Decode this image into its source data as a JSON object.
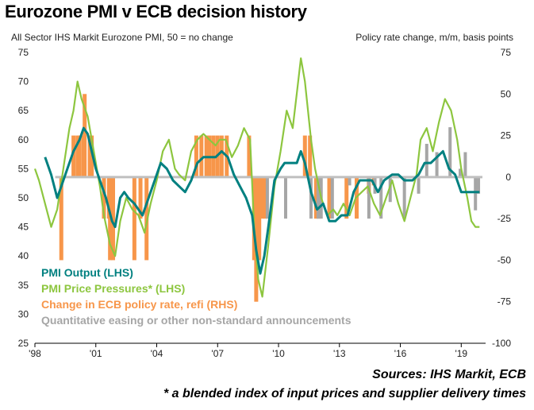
{
  "title": "Eurozone PMI v ECB decision history",
  "left_axis_label": "All Sector IHS Markit Eurozone PMI, 50 = no change",
  "right_axis_label": "Policy rate change, m/m, basis points",
  "sources": "Sources: IHS Markit, ECB",
  "footnote": "* a blended index of input prices and supplier delivery times",
  "colors": {
    "pmi_output": "#008080",
    "pmi_price": "#8DC63F",
    "refi": "#F7964A",
    "qe": "#A6A6A6"
  },
  "chart_data": {
    "type": "line",
    "ylim_left": [
      25,
      75
    ],
    "ylim_right": [
      -100,
      75
    ],
    "xlim": [
      1998,
      2020.2
    ],
    "left_ticks": [
      "75",
      "70",
      "65",
      "60",
      "55",
      "50",
      "45",
      "40",
      "35",
      "30",
      "25"
    ],
    "right_ticks": [
      "75",
      "50",
      "25",
      "0",
      "-25",
      "-50",
      "-75",
      "-100"
    ],
    "x_ticks": [
      {
        "year": 1998,
        "label": "'98"
      },
      {
        "year": 2001,
        "label": "'01"
      },
      {
        "year": 2004,
        "label": "'04"
      },
      {
        "year": 2007,
        "label": "'07"
      },
      {
        "year": 2010,
        "label": "'10"
      },
      {
        "year": 2013,
        "label": "'13"
      },
      {
        "year": 2016,
        "label": "'16"
      },
      {
        "year": 2019,
        "label": "'19"
      }
    ],
    "legend": [
      {
        "label": "PMI  Output (LHS)",
        "color": "#008080"
      },
      {
        "label": "PMI Price Pressures* (LHS)",
        "color": "#8DC63F"
      },
      {
        "label": "Change in ECB policy rate, refi (RHS)",
        "color": "#F7964A"
      },
      {
        "label": "Quantitative easing or other non-standard announcements",
        "color": "#A6A6A6"
      }
    ],
    "series": [
      {
        "name": "PMI  Output (LHS)",
        "axis": "left",
        "points": [
          [
            1998.5,
            57
          ],
          [
            1998.8,
            54
          ],
          [
            1999.1,
            50
          ],
          [
            1999.3,
            52
          ],
          [
            1999.6,
            55
          ],
          [
            1999.9,
            58
          ],
          [
            2000.2,
            60
          ],
          [
            2000.4,
            62
          ],
          [
            2000.6,
            61
          ],
          [
            2000.8,
            58
          ],
          [
            2001.0,
            55
          ],
          [
            2001.2,
            53
          ],
          [
            2001.5,
            50
          ],
          [
            2001.8,
            46
          ],
          [
            2001.95,
            45
          ],
          [
            2002.2,
            50
          ],
          [
            2002.4,
            51
          ],
          [
            2002.6,
            50
          ],
          [
            2002.9,
            49
          ],
          [
            2003.1,
            48
          ],
          [
            2003.3,
            47
          ],
          [
            2003.6,
            50
          ],
          [
            2003.9,
            53
          ],
          [
            2004.2,
            56
          ],
          [
            2004.5,
            55
          ],
          [
            2004.8,
            53
          ],
          [
            2005.1,
            52
          ],
          [
            2005.4,
            51
          ],
          [
            2005.7,
            53
          ],
          [
            2006.0,
            56
          ],
          [
            2006.3,
            57
          ],
          [
            2006.6,
            57
          ],
          [
            2006.9,
            57
          ],
          [
            2007.2,
            58
          ],
          [
            2007.5,
            57
          ],
          [
            2007.8,
            54
          ],
          [
            2008.1,
            52
          ],
          [
            2008.4,
            50
          ],
          [
            2008.7,
            47
          ],
          [
            2008.9,
            41
          ],
          [
            2009.1,
            37
          ],
          [
            2009.3,
            40
          ],
          [
            2009.5,
            45
          ],
          [
            2009.8,
            53
          ],
          [
            2010.1,
            55
          ],
          [
            2010.3,
            56
          ],
          [
            2010.6,
            56
          ],
          [
            2010.9,
            56
          ],
          [
            2011.1,
            58
          ],
          [
            2011.3,
            56
          ],
          [
            2011.6,
            51
          ],
          [
            2011.9,
            48
          ],
          [
            2012.2,
            49
          ],
          [
            2012.5,
            46
          ],
          [
            2012.8,
            46
          ],
          [
            2013.1,
            47
          ],
          [
            2013.4,
            47
          ],
          [
            2013.7,
            51
          ],
          [
            2014.0,
            53
          ],
          [
            2014.3,
            53
          ],
          [
            2014.6,
            53
          ],
          [
            2014.9,
            51
          ],
          [
            2015.2,
            53
          ],
          [
            2015.6,
            54
          ],
          [
            2015.9,
            54
          ],
          [
            2016.2,
            53
          ],
          [
            2016.6,
            53
          ],
          [
            2016.9,
            54
          ],
          [
            2017.2,
            56
          ],
          [
            2017.5,
            56
          ],
          [
            2017.8,
            57
          ],
          [
            2018.1,
            58
          ],
          [
            2018.4,
            55
          ],
          [
            2018.7,
            54
          ],
          [
            2019.0,
            51
          ],
          [
            2019.3,
            51
          ],
          [
            2019.6,
            51
          ],
          [
            2019.9,
            51
          ]
        ]
      },
      {
        "name": "PMI Price Pressures* (LHS)",
        "axis": "left",
        "points": [
          [
            1998.0,
            55
          ],
          [
            1998.2,
            53
          ],
          [
            1998.5,
            49
          ],
          [
            1998.8,
            45
          ],
          [
            1999.1,
            48
          ],
          [
            1999.4,
            55
          ],
          [
            1999.7,
            62
          ],
          [
            1999.9,
            65
          ],
          [
            2000.1,
            70
          ],
          [
            2000.3,
            67
          ],
          [
            2000.6,
            64
          ],
          [
            2000.9,
            58
          ],
          [
            2001.2,
            52
          ],
          [
            2001.4,
            47
          ],
          [
            2001.7,
            42
          ],
          [
            2001.95,
            40
          ],
          [
            2002.2,
            46
          ],
          [
            2002.5,
            50
          ],
          [
            2002.8,
            48
          ],
          [
            2003.1,
            47
          ],
          [
            2003.4,
            44
          ],
          [
            2003.7,
            49
          ],
          [
            2004.0,
            53
          ],
          [
            2004.3,
            58
          ],
          [
            2004.6,
            60
          ],
          [
            2004.9,
            55
          ],
          [
            2005.1,
            54
          ],
          [
            2005.4,
            53
          ],
          [
            2005.7,
            58
          ],
          [
            2006.0,
            60
          ],
          [
            2006.3,
            61
          ],
          [
            2006.6,
            60
          ],
          [
            2006.9,
            59
          ],
          [
            2007.1,
            60
          ],
          [
            2007.4,
            60
          ],
          [
            2007.7,
            57
          ],
          [
            2008.0,
            59
          ],
          [
            2008.3,
            62
          ],
          [
            2008.6,
            60
          ],
          [
            2008.8,
            45
          ],
          [
            2009.0,
            36
          ],
          [
            2009.2,
            33
          ],
          [
            2009.5,
            42
          ],
          [
            2009.8,
            52
          ],
          [
            2010.1,
            58
          ],
          [
            2010.4,
            65
          ],
          [
            2010.7,
            62
          ],
          [
            2010.9,
            68
          ],
          [
            2011.1,
            74
          ],
          [
            2011.3,
            70
          ],
          [
            2011.6,
            60
          ],
          [
            2011.8,
            55
          ],
          [
            2012.1,
            50
          ],
          [
            2012.4,
            47
          ],
          [
            2012.7,
            48
          ],
          [
            2012.9,
            47
          ],
          [
            2013.2,
            49
          ],
          [
            2013.5,
            47
          ],
          [
            2013.8,
            50
          ],
          [
            2014.1,
            51
          ],
          [
            2014.4,
            52
          ],
          [
            2014.7,
            49
          ],
          [
            2015.0,
            47
          ],
          [
            2015.3,
            50
          ],
          [
            2015.6,
            53
          ],
          [
            2015.9,
            49
          ],
          [
            2016.2,
            46
          ],
          [
            2016.5,
            50
          ],
          [
            2016.8,
            54
          ],
          [
            2017.0,
            60
          ],
          [
            2017.3,
            62
          ],
          [
            2017.6,
            58
          ],
          [
            2017.9,
            63
          ],
          [
            2018.2,
            67
          ],
          [
            2018.5,
            65
          ],
          [
            2018.8,
            60
          ],
          [
            2019.0,
            55
          ],
          [
            2019.3,
            50
          ],
          [
            2019.5,
            46
          ],
          [
            2019.7,
            45
          ],
          [
            2019.9,
            45
          ]
        ]
      }
    ],
    "refi_changes": [
      {
        "x": 1999.3,
        "value": -50
      },
      {
        "x": 1999.9,
        "value": 25
      },
      {
        "x": 2000.1,
        "value": 25
      },
      {
        "x": 2000.2,
        "value": 25
      },
      {
        "x": 2000.4,
        "value": 25
      },
      {
        "x": 2000.45,
        "value": 50
      },
      {
        "x": 2000.7,
        "value": 25
      },
      {
        "x": 2000.8,
        "value": 25
      },
      {
        "x": 2001.4,
        "value": -25
      },
      {
        "x": 2001.65,
        "value": -25
      },
      {
        "x": 2001.7,
        "value": -50
      },
      {
        "x": 2001.85,
        "value": -50
      },
      {
        "x": 2002.9,
        "value": -50
      },
      {
        "x": 2003.2,
        "value": -25
      },
      {
        "x": 2003.5,
        "value": -50
      },
      {
        "x": 2005.95,
        "value": 25
      },
      {
        "x": 2006.2,
        "value": 25
      },
      {
        "x": 2006.45,
        "value": 25
      },
      {
        "x": 2006.6,
        "value": 25
      },
      {
        "x": 2006.8,
        "value": 25
      },
      {
        "x": 2007.0,
        "value": 25
      },
      {
        "x": 2007.2,
        "value": 25
      },
      {
        "x": 2007.45,
        "value": 25
      },
      {
        "x": 2008.55,
        "value": 25
      },
      {
        "x": 2008.8,
        "value": -50
      },
      {
        "x": 2008.9,
        "value": -75
      },
      {
        "x": 2008.95,
        "value": -50
      },
      {
        "x": 2009.05,
        "value": -50
      },
      {
        "x": 2009.2,
        "value": -25
      },
      {
        "x": 2009.35,
        "value": -25
      },
      {
        "x": 2011.3,
        "value": 25
      },
      {
        "x": 2011.55,
        "value": 25
      },
      {
        "x": 2011.85,
        "value": -25
      },
      {
        "x": 2012.0,
        "value": -25
      },
      {
        "x": 2012.5,
        "value": -25
      },
      {
        "x": 2013.35,
        "value": -25
      },
      {
        "x": 2013.85,
        "value": -25
      },
      {
        "x": 2014.45,
        "value": -10
      },
      {
        "x": 2014.7,
        "value": -5
      }
    ],
    "qe_announcements": [
      {
        "x": 2009.45,
        "value": -25
      },
      {
        "x": 2010.35,
        "value": -25
      },
      {
        "x": 2011.6,
        "value": -25
      },
      {
        "x": 2011.95,
        "value": -25
      },
      {
        "x": 2012.1,
        "value": -25
      },
      {
        "x": 2012.65,
        "value": -25
      },
      {
        "x": 2013.5,
        "value": -5
      },
      {
        "x": 2014.45,
        "value": -25
      },
      {
        "x": 2014.75,
        "value": -10
      },
      {
        "x": 2015.05,
        "value": -25
      },
      {
        "x": 2015.5,
        "value": -15
      },
      {
        "x": 2016.2,
        "value": -25
      },
      {
        "x": 2016.9,
        "value": -10
      },
      {
        "x": 2017.3,
        "value": 20
      },
      {
        "x": 2017.8,
        "value": 15
      },
      {
        "x": 2018.45,
        "value": 30
      },
      {
        "x": 2018.95,
        "value": 5
      },
      {
        "x": 2019.2,
        "value": 15
      },
      {
        "x": 2019.7,
        "value": -20
      },
      {
        "x": 2019.85,
        "value": -10
      }
    ]
  }
}
